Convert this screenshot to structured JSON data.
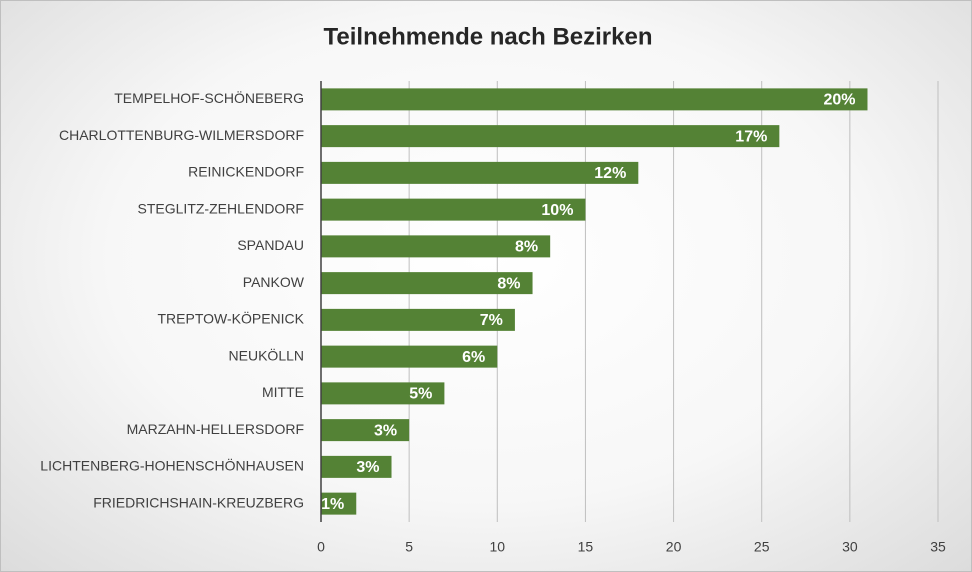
{
  "chart_data": {
    "type": "bar",
    "orientation": "horizontal",
    "title": "Teilnehmende nach Bezirken",
    "categories": [
      "TEMPELHOF-SCHÖNEBERG",
      "CHARLOTTENBURG-WILMERSDORF",
      "REINICKENDORF",
      "STEGLITZ-ZEHLENDORF",
      "SPANDAU",
      "PANKOW",
      "TREPTOW-KÖPENICK",
      "NEUKÖLLN",
      "MITTE",
      "MARZAHN-HELLERSDORF",
      "LICHTENBERG-HOHENSCHÖNHAUSEN",
      "FRIEDRICHSHAIN-KREUZBERG"
    ],
    "values": [
      31,
      26,
      18,
      15,
      13,
      12,
      11,
      10,
      7,
      5,
      4,
      2
    ],
    "value_labels": [
      "20%",
      "17%",
      "12%",
      "10%",
      "8%",
      "8%",
      "7%",
      "6%",
      "5%",
      "3%",
      "3%",
      "1%"
    ],
    "color": "#548235",
    "xlim": [
      0,
      35
    ],
    "xticks": [
      0,
      5,
      10,
      15,
      20,
      25,
      30,
      35
    ],
    "grid": true
  }
}
